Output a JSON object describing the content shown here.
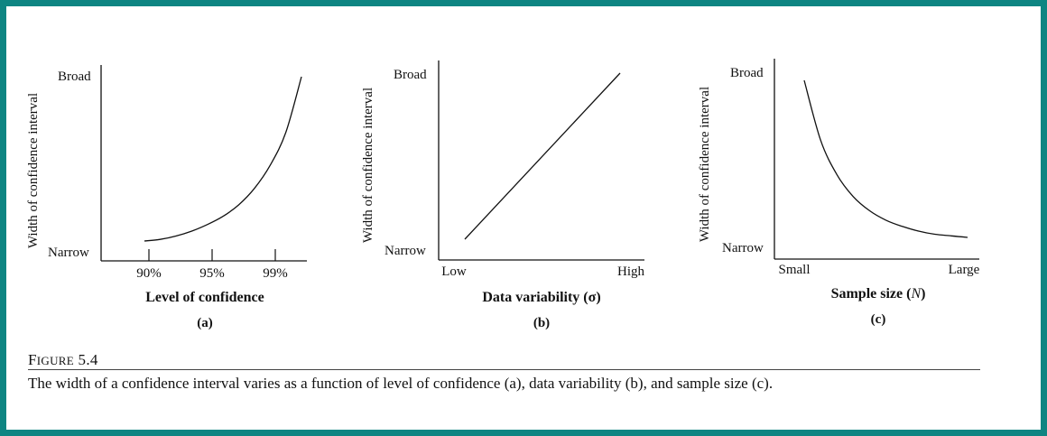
{
  "figure": {
    "label_first": "F",
    "label_rest": "IGURE",
    "label_number": "5.4",
    "caption": "The width of a confidence interval varies as a function of level of confidence (a), data variability (b), and sample size (c)."
  },
  "colors": {
    "border": "#0e8582",
    "ink": "#111111",
    "background": "#ffffff"
  },
  "chart_data": [
    {
      "type": "line",
      "panel": "(a)",
      "xlabel": "Level of confidence",
      "ylabel": "Width of confidence interval",
      "y_ticks": [
        "Narrow",
        "Broad"
      ],
      "x_ticks": [
        "90%",
        "95%",
        "99%"
      ],
      "curve": "convex-increasing",
      "series": [
        {
          "x": [
            0.0,
            0.1,
            0.2,
            0.3,
            0.4,
            0.5,
            0.6,
            0.7,
            0.8,
            0.9,
            1.0
          ],
          "y": [
            0.0,
            0.01,
            0.03,
            0.06,
            0.1,
            0.15,
            0.22,
            0.32,
            0.46,
            0.66,
            1.0
          ]
        }
      ]
    },
    {
      "type": "line",
      "panel": "(b)",
      "xlabel": "Data variability (σ)",
      "ylabel": "Width of confidence interval",
      "y_ticks": [
        "Narrow",
        "Broad"
      ],
      "x_ticks": [
        "Low",
        "High"
      ],
      "curve": "linear-increasing",
      "series": [
        {
          "x": [
            0.0,
            1.0
          ],
          "y": [
            0.0,
            1.0
          ]
        }
      ]
    },
    {
      "type": "line",
      "panel": "(c)",
      "xlabel_main": "Sample size (",
      "xlabel_var": "N",
      "xlabel_end": ")",
      "ylabel": "Width of confidence interval",
      "y_ticks": [
        "Narrow",
        "Broad"
      ],
      "x_ticks": [
        "Small",
        "Large"
      ],
      "curve": "convex-decreasing",
      "series": [
        {
          "x": [
            0.0,
            0.1,
            0.2,
            0.3,
            0.4,
            0.5,
            0.6,
            0.7,
            0.8,
            0.9,
            1.0
          ],
          "y": [
            1.0,
            0.62,
            0.4,
            0.26,
            0.17,
            0.11,
            0.07,
            0.04,
            0.02,
            0.01,
            0.0
          ]
        }
      ]
    }
  ]
}
